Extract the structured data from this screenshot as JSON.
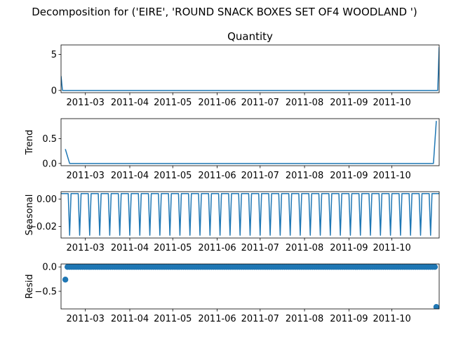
{
  "figure_title": "Decomposition for ('EIRE', 'ROUND SNACK BOXES SET OF4 WOODLAND ')",
  "colors": {
    "series": "#1f77b4",
    "axes": "#000000",
    "background": "#ffffff"
  },
  "chart_data": [
    {
      "type": "line",
      "title": "Quantity",
      "ylabel": "",
      "xlim": [
        "2011-02-12",
        "2011-11-03"
      ],
      "ylim": [
        -0.31,
        6.31
      ],
      "yticks": [
        0,
        5
      ],
      "ytick_labels": [
        "0",
        "5"
      ],
      "xtick_labels": [
        "2011-03",
        "2011-04",
        "2011-05",
        "2011-06",
        "2011-07",
        "2011-08",
        "2011-09",
        "2011-10"
      ],
      "xtick_dates": [
        "2011-03-01",
        "2011-04-01",
        "2011-05-01",
        "2011-06-01",
        "2011-07-01",
        "2011-08-01",
        "2011-09-01",
        "2011-10-01"
      ],
      "grid": false,
      "series": [
        {
          "x": [
            "2011-02-12",
            "2011-02-13",
            "2011-11-02",
            "2011-11-03"
          ],
          "y": [
            2.0,
            0,
            0,
            6.0
          ]
        }
      ]
    },
    {
      "type": "line",
      "title": "",
      "ylabel": "Trend",
      "xlim": [
        "2011-02-12",
        "2011-11-03"
      ],
      "ylim": [
        -0.045,
        0.905
      ],
      "yticks": [
        0.0,
        0.5
      ],
      "ytick_labels": [
        "0.0",
        "0.5"
      ],
      "xtick_labels": [
        "2011-03",
        "2011-04",
        "2011-05",
        "2011-06",
        "2011-07",
        "2011-08",
        "2011-09",
        "2011-10"
      ],
      "xtick_dates": [
        "2011-03-01",
        "2011-04-01",
        "2011-05-01",
        "2011-06-01",
        "2011-07-01",
        "2011-08-01",
        "2011-09-01",
        "2011-10-01"
      ],
      "grid": false,
      "series": [
        {
          "x": [
            "2011-02-15",
            "2011-02-18",
            "2011-10-30",
            "2011-11-01"
          ],
          "y": [
            0.29,
            0,
            0,
            0.86
          ]
        }
      ]
    },
    {
      "type": "line",
      "title": "",
      "ylabel": "Seasonal",
      "xlim": [
        "2011-02-12",
        "2011-11-03"
      ],
      "ylim": [
        -0.0285,
        0.0055
      ],
      "yticks": [
        0.0,
        -0.02
      ],
      "ytick_labels": [
        "0.00",
        "−0.02"
      ],
      "xtick_labels": [
        "2011-03",
        "2011-04",
        "2011-05",
        "2011-06",
        "2011-07",
        "2011-08",
        "2011-09",
        "2011-10"
      ],
      "xtick_dates": [
        "2011-03-01",
        "2011-04-01",
        "2011-05-01",
        "2011-06-01",
        "2011-07-01",
        "2011-08-01",
        "2011-09-01",
        "2011-10-01"
      ],
      "grid": false,
      "seasonal_pattern": {
        "start": "2011-02-12",
        "end": "2011-11-03",
        "period_days": 7,
        "values": [
          0.0041,
          0.0041,
          0.0041,
          0.0041,
          0.0041,
          0.0041,
          -0.0265
        ]
      }
    },
    {
      "type": "scatter",
      "title": "",
      "ylabel": "Resid",
      "xlim": [
        "2011-02-12",
        "2011-11-03"
      ],
      "ylim": [
        -0.86,
        0.06
      ],
      "yticks": [
        0.0,
        -0.5
      ],
      "ytick_labels": [
        "0.0",
        "−0.5"
      ],
      "xtick_labels": [
        "2011-03",
        "2011-04",
        "2011-05",
        "2011-06",
        "2011-07",
        "2011-08",
        "2011-09",
        "2011-10"
      ],
      "xtick_dates": [
        "2011-03-01",
        "2011-04-01",
        "2011-05-01",
        "2011-06-01",
        "2011-07-01",
        "2011-08-01",
        "2011-09-01",
        "2011-10-01"
      ],
      "grid": false,
      "resid_points": {
        "start": "2011-02-15",
        "end": "2011-11-01",
        "step_days": 1.5,
        "default_y": 0.0,
        "overrides": [
          {
            "x": "2011-02-15",
            "y": -0.26
          },
          {
            "x": "2011-11-01",
            "y": -0.82
          }
        ]
      }
    }
  ]
}
